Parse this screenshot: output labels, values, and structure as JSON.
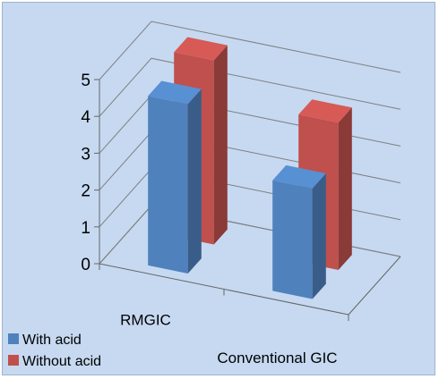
{
  "chart_data": {
    "type": "bar",
    "categories": [
      "RMGIC",
      "Conventional GIC"
    ],
    "series": [
      {
        "name": "With acid",
        "values": [
          4.6,
          3.0
        ],
        "color": "#4f81bd"
      },
      {
        "name": "Without acid",
        "values": [
          5.0,
          4.0
        ],
        "color": "#c0504d"
      }
    ],
    "y_ticks": [
      "0",
      "1",
      "2",
      "3",
      "4",
      "5"
    ],
    "ylim": [
      0,
      5
    ],
    "grid": true,
    "legend_position": "bottom-left",
    "title": "",
    "xlabel": "",
    "ylabel": ""
  }
}
